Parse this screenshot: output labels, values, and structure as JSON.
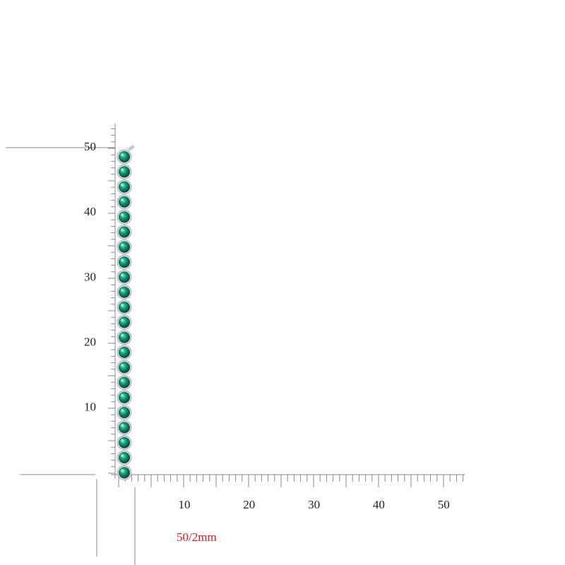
{
  "ruler": {
    "y_labels": [
      "50",
      "40",
      "30",
      "20",
      "10"
    ],
    "x_labels": [
      "10",
      "20",
      "30",
      "40",
      "50"
    ],
    "caption": "50/2mm"
  }
}
